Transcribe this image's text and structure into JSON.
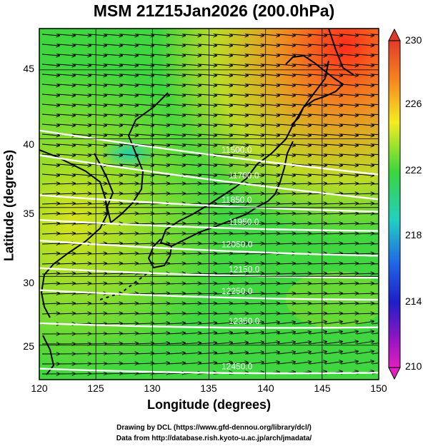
{
  "title": "MSM 21Z15Jan2026 (200.0hPa)",
  "x_axis": {
    "label": "Longitude (degrees)",
    "ticks": [
      "120",
      "125",
      "130",
      "135",
      "140",
      "145",
      "150"
    ]
  },
  "y_axis": {
    "label": "Latitude  (degrees)",
    "ticks": [
      "25",
      "30",
      "35",
      "40",
      "45"
    ]
  },
  "colorbar": {
    "ticks": [
      "230",
      "226",
      "222",
      "218",
      "214",
      "210"
    ],
    "range": [
      210,
      230
    ]
  },
  "contours": [
    {
      "label": "11500.0",
      "lat_west": 40.6,
      "lat_east": 37.4
    },
    {
      "label": "11700.0",
      "lat_west": 38.8,
      "lat_east": 35.6
    },
    {
      "label": "11850.0",
      "lat_west": 35.9,
      "lat_east": 34.7
    },
    {
      "label": "11950.0",
      "lat_west": 34.1,
      "lat_east": 33.3
    },
    {
      "label": "12050.0",
      "lat_west": 32.6,
      "lat_east": 31.5
    },
    {
      "label": "12150.0",
      "lat_west": 30.6,
      "lat_east": 29.9
    },
    {
      "label": "12250.0",
      "lat_west": 29.0,
      "lat_east": 28.3
    },
    {
      "label": "12350.0",
      "lat_west": 26.6,
      "lat_east": 26.3
    },
    {
      "label": "12450.0",
      "lat_west": 23.3,
      "lat_east": 23.0
    }
  ],
  "footer": {
    "line1": "Drawing by DCL (https://www.gfd-dennou.org/library/dcl/)",
    "line2": "Data from http://database.rish.kyoto-u.ac.jp/arch/jmadata/"
  },
  "colors": {
    "warm": "#ff3d20",
    "neutral": "#f3e81c",
    "cool": "#2fd33f",
    "contour": "#ffffff"
  }
}
